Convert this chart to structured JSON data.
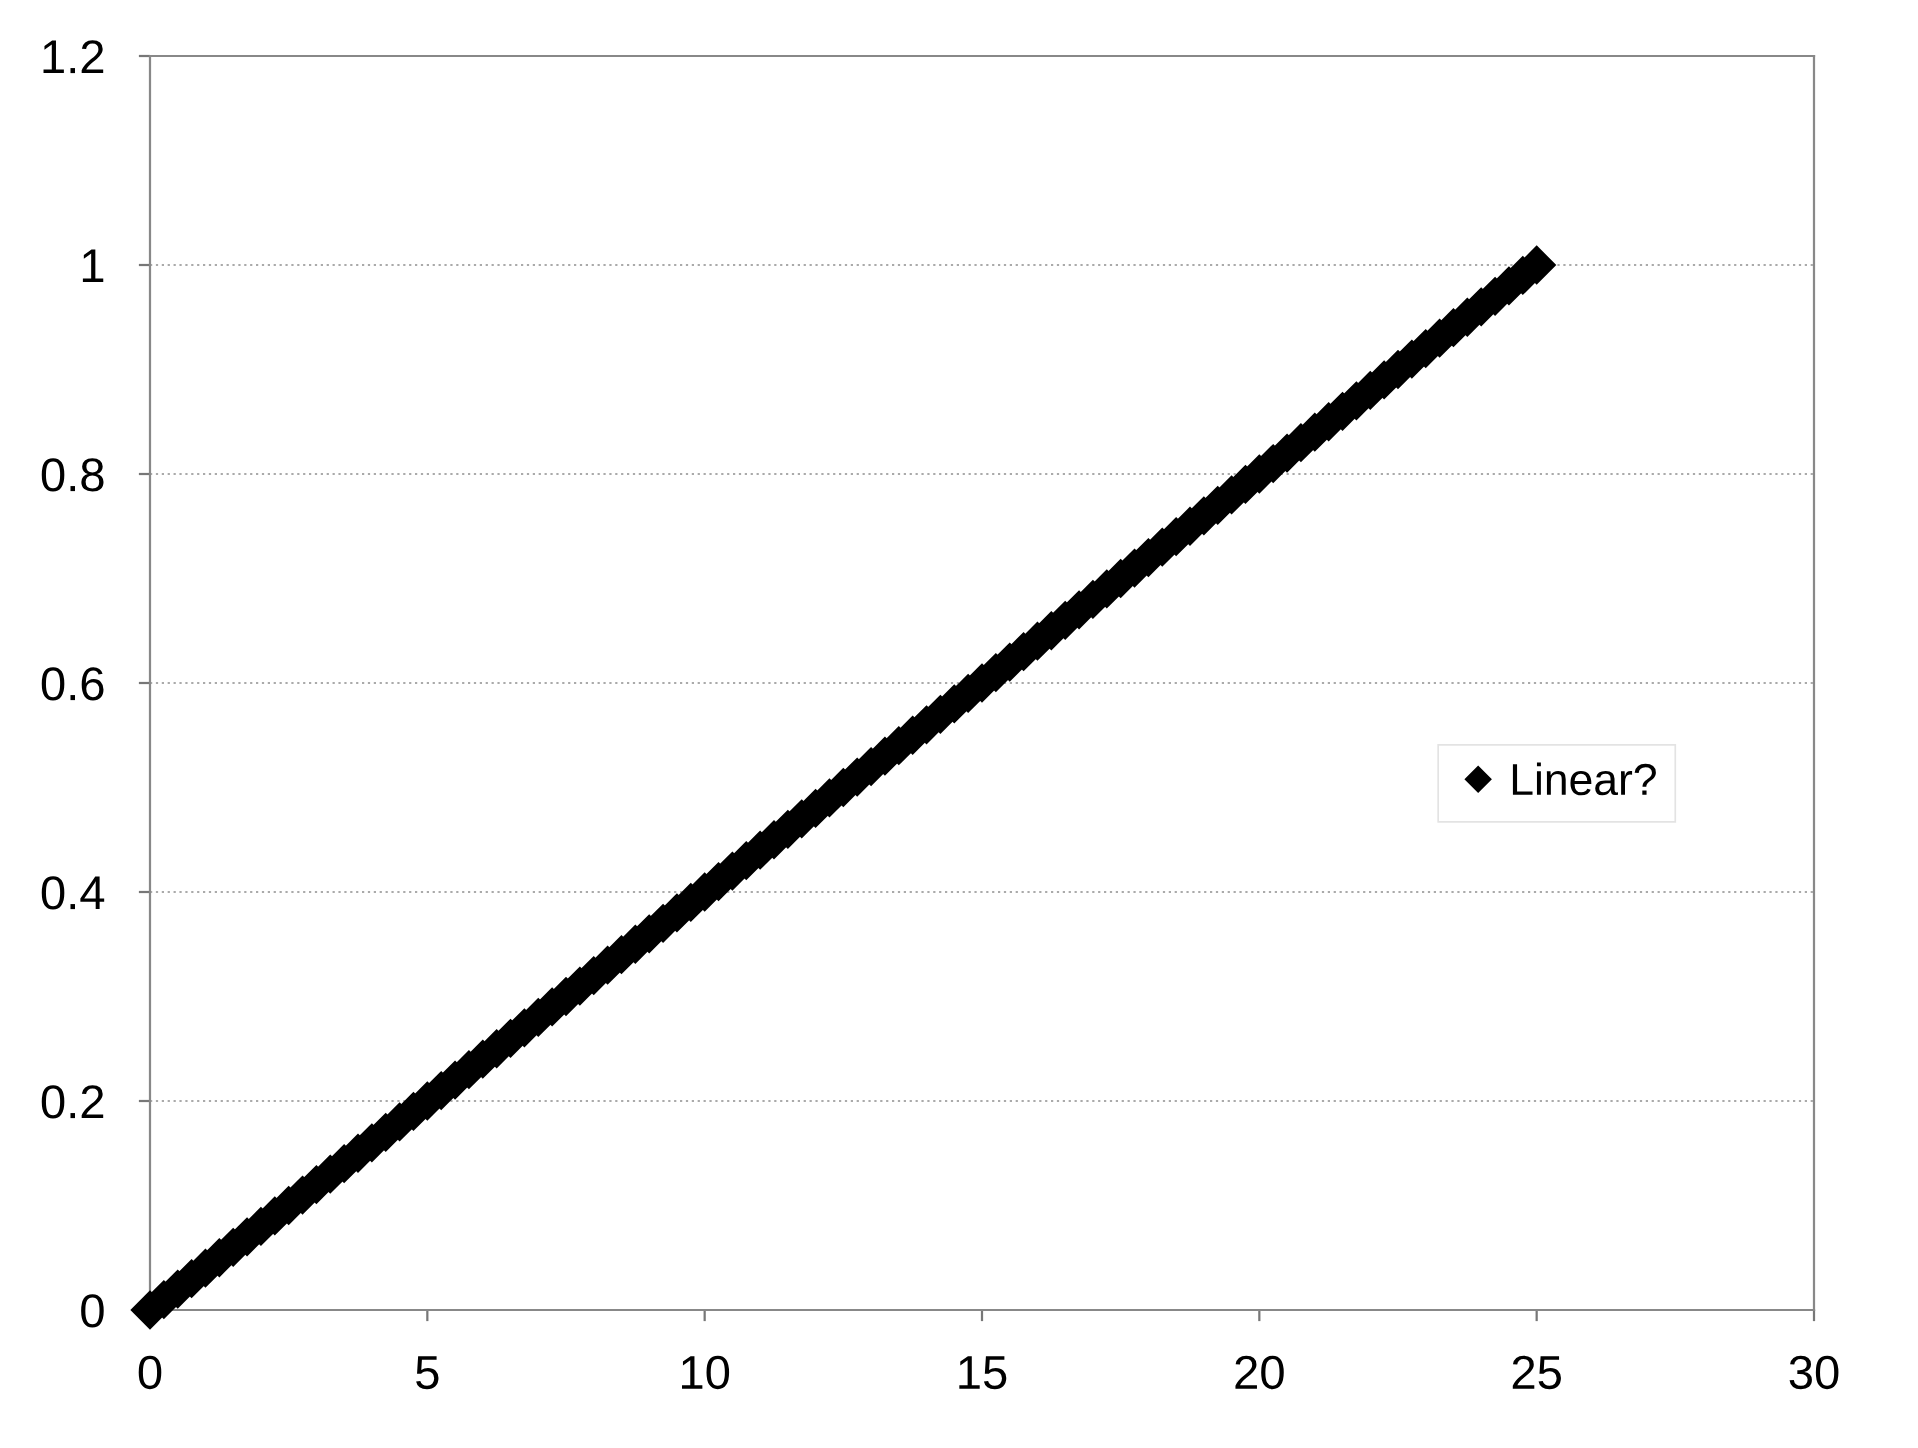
{
  "chart_data": {
    "type": "scatter",
    "x": [
      0,
      0.25,
      0.5,
      0.75,
      1,
      1.25,
      1.5,
      1.75,
      2,
      2.25,
      2.5,
      2.75,
      3,
      3.25,
      3.5,
      3.75,
      4,
      4.25,
      4.5,
      4.75,
      5,
      5.25,
      5.5,
      5.75,
      6,
      6.25,
      6.5,
      6.75,
      7,
      7.25,
      7.5,
      7.75,
      8,
      8.25,
      8.5,
      8.75,
      9,
      9.25,
      9.5,
      9.75,
      10,
      10.25,
      10.5,
      10.75,
      11,
      11.25,
      11.5,
      11.75,
      12,
      12.25,
      12.5,
      12.75,
      13,
      13.25,
      13.5,
      13.75,
      14,
      14.25,
      14.5,
      14.75,
      15,
      15.25,
      15.5,
      15.75,
      16,
      16.25,
      16.5,
      16.75,
      17,
      17.25,
      17.5,
      17.75,
      18,
      18.25,
      18.5,
      18.75,
      19,
      19.25,
      19.5,
      19.75,
      20,
      20.25,
      20.5,
      20.75,
      21,
      21.25,
      21.5,
      21.75,
      22,
      22.25,
      22.5,
      22.75,
      23,
      23.25,
      23.5,
      23.75,
      24,
      24.25,
      24.5,
      24.75,
      25
    ],
    "series": [
      {
        "name": "Linear?",
        "color": "#000000",
        "values": [
          0,
          0.01,
          0.02,
          0.03,
          0.04,
          0.05,
          0.06,
          0.07,
          0.08,
          0.09,
          0.1,
          0.11,
          0.12,
          0.13,
          0.14,
          0.15,
          0.16,
          0.17,
          0.18,
          0.19,
          0.2,
          0.21,
          0.22,
          0.23,
          0.24,
          0.25,
          0.26,
          0.27,
          0.28,
          0.29,
          0.3,
          0.31,
          0.32,
          0.33,
          0.34,
          0.35,
          0.36,
          0.37,
          0.38,
          0.39,
          0.4,
          0.41,
          0.42,
          0.43,
          0.44,
          0.45,
          0.46,
          0.47,
          0.48,
          0.49,
          0.5,
          0.51,
          0.52,
          0.53,
          0.54,
          0.55,
          0.56,
          0.57,
          0.58,
          0.59,
          0.6,
          0.61,
          0.62,
          0.63,
          0.64,
          0.65,
          0.66,
          0.67,
          0.68,
          0.69,
          0.7,
          0.71,
          0.72,
          0.73,
          0.74,
          0.75,
          0.76,
          0.77,
          0.78,
          0.79,
          0.8,
          0.81,
          0.82,
          0.83,
          0.84,
          0.85,
          0.86,
          0.87,
          0.88,
          0.89,
          0.9,
          0.91,
          0.92,
          0.93,
          0.94,
          0.95,
          0.96,
          0.97,
          0.98,
          0.99,
          1
        ]
      }
    ],
    "xlim": [
      0,
      30
    ],
    "xticks": [
      0,
      5,
      10,
      15,
      20,
      25,
      30
    ],
    "ylim": [
      0,
      1.2
    ],
    "yticks": [
      0,
      0.2,
      0.4,
      0.6,
      0.8,
      1,
      1.2
    ],
    "grid": "y",
    "legend": "right",
    "marker": "diamond"
  }
}
